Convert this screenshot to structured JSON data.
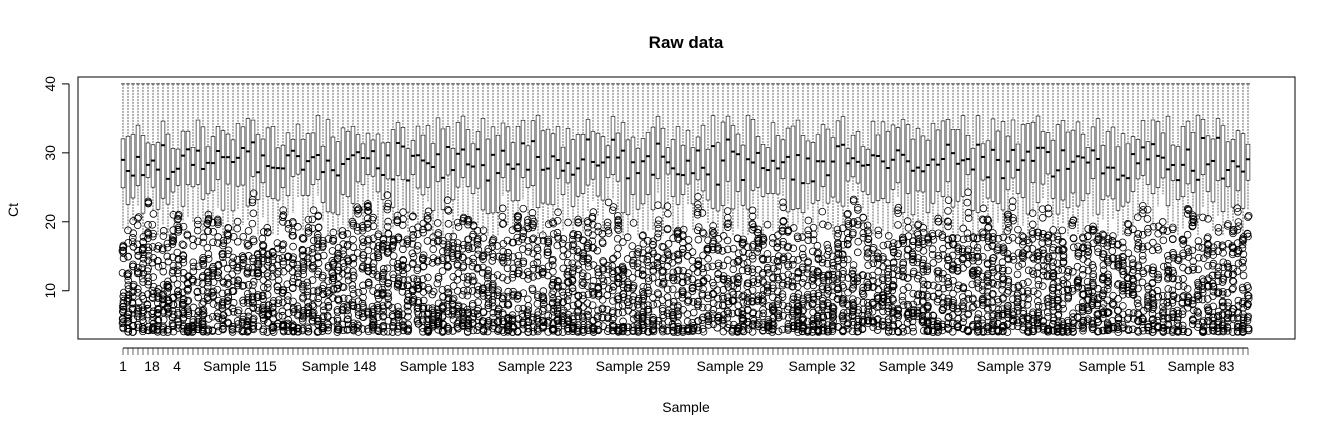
{
  "chart_data": {
    "type": "boxplot",
    "title": "Raw data",
    "xlabel": "Sample",
    "ylabel": "Ct",
    "ylim": [
      3,
      41
    ],
    "yticks": [
      10,
      20,
      30,
      40
    ],
    "x_tick_labels": [
      "1",
      "18",
      "4",
      "Sample 115",
      "Sample 148",
      "Sample 183",
      "Sample 223",
      "Sample 259",
      "Sample 29",
      "Sample 32",
      "Sample 349",
      "Sample 379",
      "Sample 51",
      "Sample 83"
    ],
    "n_boxes": 226,
    "box_summary": {
      "typical_min": 4,
      "typical_q1": 24,
      "typical_median": 28,
      "typical_q3": 33,
      "typical_max": 40
    },
    "grid": false,
    "legend": "none",
    "colors": {
      "stroke": "#000000",
      "background": "#ffffff"
    }
  }
}
